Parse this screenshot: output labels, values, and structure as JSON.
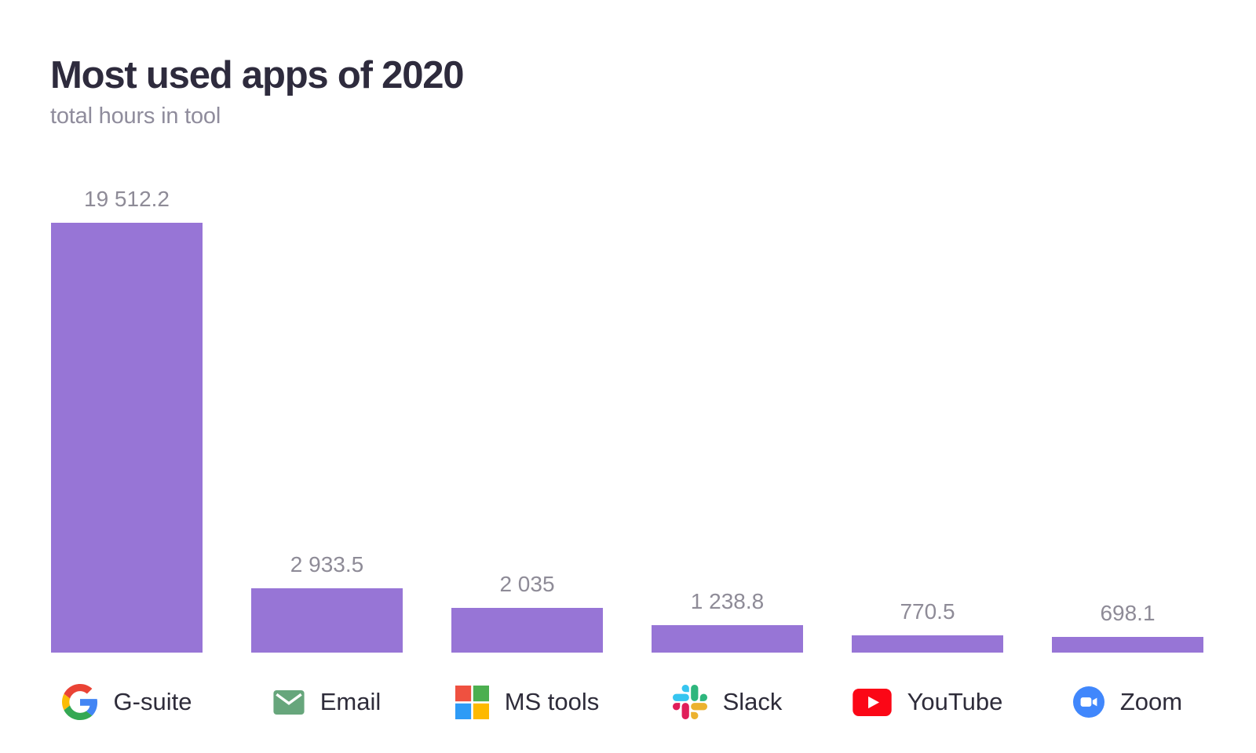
{
  "chart": {
    "title": "Most used apps of 2020",
    "subtitle": "total hours in tool"
  },
  "chart_data": {
    "type": "bar",
    "title": "Most used apps of 2020",
    "subtitle": "total hours in tool",
    "categories": [
      "G-suite",
      "Email",
      "MS tools",
      "Slack",
      "YouTube",
      "Zoom"
    ],
    "values": [
      19512.2,
      2933.5,
      2035,
      1238.8,
      770.5,
      698.1
    ],
    "value_labels": [
      "19 512.2",
      "2 933.5",
      "2 035",
      "1 238.8",
      "770.5",
      "698.1"
    ],
    "icons": [
      "google-icon",
      "email-icon",
      "microsoft-icon",
      "slack-icon",
      "youtube-icon",
      "zoom-icon"
    ],
    "bar_color": "#9775d6",
    "value_label_color": "#8e8b97",
    "ylim": [
      0,
      19512.2
    ],
    "grid": false,
    "legend": false
  }
}
